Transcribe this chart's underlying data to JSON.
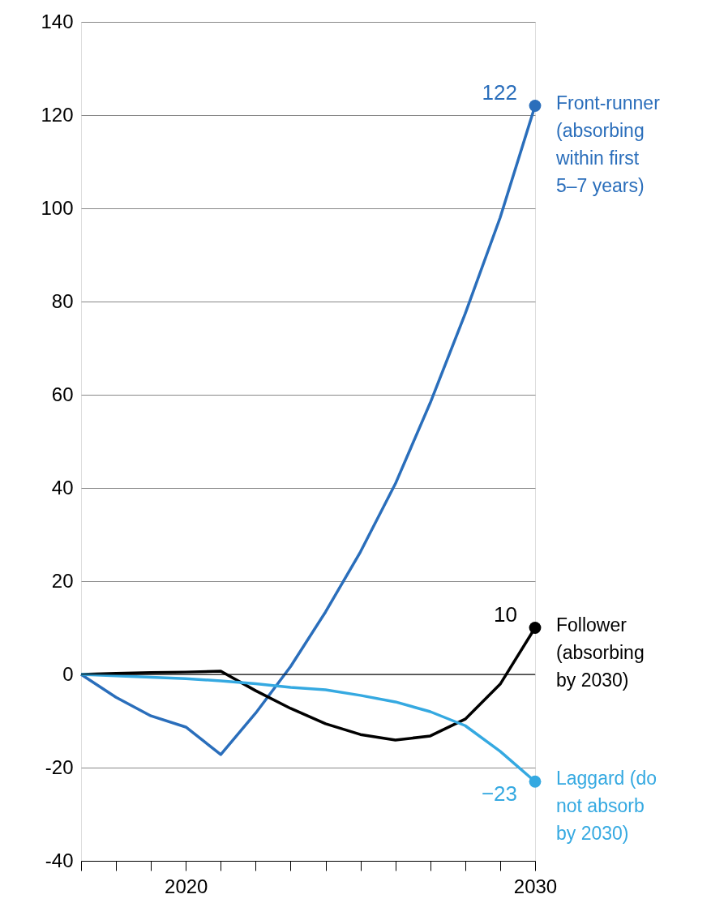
{
  "chart_data": {
    "type": "line",
    "x": [
      2017,
      2018,
      2019,
      2020,
      2021,
      2022,
      2023,
      2024,
      2025,
      2026,
      2027,
      2028,
      2029,
      2030
    ],
    "series": [
      {
        "name": "Front-runner (absorbing within first 5–7 years)",
        "color": "#2a6ebb",
        "values": [
          0,
          -4.9,
          -8.9,
          -11.3,
          -17.2,
          -8.3,
          1.7,
          13.4,
          26.3,
          40.9,
          58.3,
          77.4,
          98,
          122
        ],
        "value_labels": [
          null,
          null,
          null,
          null,
          null,
          null,
          null,
          null,
          null,
          null,
          null,
          null,
          null,
          "122"
        ]
      },
      {
        "name": "Follower (absorbing by 2030)",
        "color": "#000000",
        "values": [
          0,
          0.2,
          0.4,
          0.5,
          0.7,
          -3.5,
          -7.3,
          -10.6,
          -12.9,
          -14.1,
          -13.2,
          -9.6,
          -2.1,
          10
        ],
        "value_labels": [
          null,
          null,
          null,
          null,
          null,
          null,
          null,
          null,
          null,
          null,
          null,
          null,
          null,
          "10"
        ]
      },
      {
        "name": "Laggard (do not absorb by 2030)",
        "color": "#35a9e1",
        "values": [
          0,
          -0.3,
          -0.6,
          -0.9,
          -1.4,
          -2,
          -2.8,
          -3.3,
          -4.5,
          -5.9,
          -8,
          -11,
          -16.5,
          -23
        ],
        "value_labels": [
          null,
          null,
          null,
          null,
          null,
          null,
          null,
          null,
          null,
          null,
          null,
          null,
          null,
          "−23"
        ]
      }
    ],
    "xlim": [
      2017,
      2030
    ],
    "xticks": [
      {
        "value": 2017,
        "label": null
      },
      {
        "value": 2018,
        "label": null
      },
      {
        "value": 2019,
        "label": null
      },
      2020,
      {
        "value": 2021,
        "label": null
      },
      {
        "value": 2022,
        "label": null
      },
      {
        "value": 2023,
        "label": null
      },
      {
        "value": 2024,
        "label": null
      },
      {
        "value": 2025,
        "label": null
      },
      {
        "value": 2026,
        "label": null
      },
      {
        "value": 2027,
        "label": null
      },
      {
        "value": 2028,
        "label": null
      },
      {
        "value": 2029,
        "label": null
      },
      2030
    ],
    "ylim": [
      -40,
      140
    ],
    "yticks": [
      -40,
      -20,
      0,
      20,
      40,
      60,
      80,
      100,
      120,
      140
    ],
    "ref_lines": [
      {
        "axis": "y",
        "value": 0,
        "color": "#000000"
      }
    ],
    "grid": "y",
    "legend": "right",
    "marker": "none",
    "line_style": "solid"
  }
}
